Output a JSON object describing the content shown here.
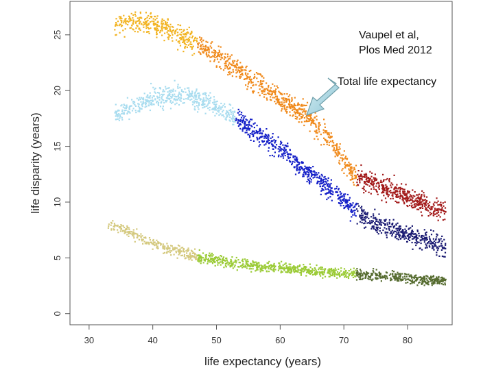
{
  "chart_data": {
    "type": "scatter",
    "title": "",
    "xlabel": "life expectancy (years)",
    "ylabel": "life disparity (years)",
    "xlim": [
      27,
      87
    ],
    "ylim": [
      -1,
      28
    ],
    "xticks": [
      30,
      40,
      50,
      60,
      70,
      80
    ],
    "yticks": [
      0,
      5,
      10,
      15,
      20,
      25
    ],
    "grid": false,
    "legend": "none",
    "annotations": {
      "citation_line1": "Vaupel et al,",
      "citation_line2": "Plos Med 2012",
      "arrow_label": "Total life expectancy",
      "arrow_target": [
        64.5,
        18.4
      ]
    },
    "series": [
      {
        "group": "total",
        "segments": [
          {
            "color": "#f2b321",
            "x_range": [
              34,
              47
            ]
          },
          {
            "color": "#f08a1c",
            "x_range": [
              47,
              72
            ]
          },
          {
            "color": "#a31b1b",
            "x_range": [
              72,
              86
            ]
          }
        ],
        "curve": [
          [
            34,
            25.8
          ],
          [
            36,
            26.1
          ],
          [
            38,
            26.2
          ],
          [
            40,
            26.0
          ],
          [
            42,
            25.6
          ],
          [
            45,
            24.8
          ],
          [
            48,
            23.8
          ],
          [
            52,
            22.4
          ],
          [
            56,
            20.9
          ],
          [
            60,
            19.2
          ],
          [
            64,
            17.8
          ],
          [
            68,
            15.4
          ],
          [
            70,
            13.6
          ],
          [
            72,
            12.3
          ],
          [
            75,
            11.5
          ],
          [
            78,
            11.0
          ],
          [
            81,
            10.2
          ],
          [
            84,
            9.5
          ],
          [
            86,
            9.2
          ]
        ],
        "spread": 0.65,
        "count": 1500
      },
      {
        "group": "middle",
        "segments": [
          {
            "color": "#a8dcef",
            "x_range": [
              34,
              53
            ]
          },
          {
            "color": "#1520c8",
            "x_range": [
              53,
              72
            ]
          },
          {
            "color": "#1a1a72",
            "x_range": [
              72,
              86
            ]
          }
        ],
        "curve": [
          [
            34,
            17.8
          ],
          [
            37,
            18.6
          ],
          [
            40,
            19.3
          ],
          [
            43,
            19.7
          ],
          [
            46,
            19.5
          ],
          [
            49,
            18.8
          ],
          [
            52,
            17.9
          ],
          [
            56,
            16.4
          ],
          [
            60,
            14.8
          ],
          [
            64,
            12.8
          ],
          [
            68,
            11.1
          ],
          [
            71,
            9.6
          ],
          [
            74,
            8.3
          ],
          [
            77,
            7.6
          ],
          [
            80,
            7.1
          ],
          [
            83,
            6.5
          ],
          [
            86,
            6.0
          ]
        ],
        "spread": 0.6,
        "count": 1400
      },
      {
        "group": "bottom",
        "segments": [
          {
            "color": "#d4c97e",
            "x_range": [
              33,
              47
            ]
          },
          {
            "color": "#9bcb36",
            "x_range": [
              47,
              72
            ]
          },
          {
            "color": "#556b2f",
            "x_range": [
              72,
              86
            ]
          }
        ],
        "curve": [
          [
            33,
            8.0
          ],
          [
            36,
            7.4
          ],
          [
            39,
            6.6
          ],
          [
            42,
            5.9
          ],
          [
            45,
            5.4
          ],
          [
            48,
            5.0
          ],
          [
            52,
            4.6
          ],
          [
            56,
            4.3
          ],
          [
            60,
            4.1
          ],
          [
            64,
            3.9
          ],
          [
            68,
            3.7
          ],
          [
            72,
            3.5
          ],
          [
            76,
            3.4
          ],
          [
            80,
            3.2
          ],
          [
            83,
            3.0
          ],
          [
            86,
            3.0
          ]
        ],
        "spread": 0.32,
        "count": 1200
      }
    ]
  }
}
